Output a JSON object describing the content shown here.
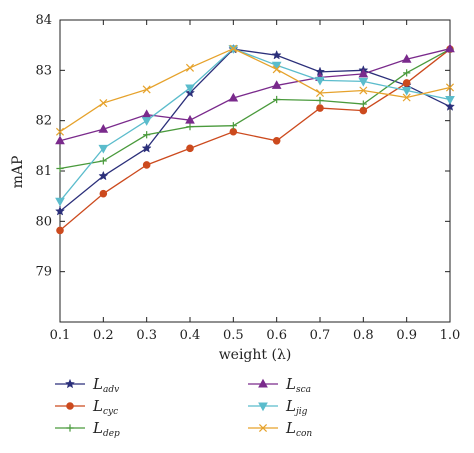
{
  "chart_data": {
    "type": "line",
    "xlabel": "weight (λ)",
    "ylabel": "mAP",
    "x": [
      0.1,
      0.2,
      0.3,
      0.4,
      0.5,
      0.6,
      0.7,
      0.8,
      0.9,
      1.0
    ],
    "x_tick_labels": [
      "0.1",
      "0.2",
      "0.3",
      "0.4",
      "0.5",
      "0.6",
      "0.7",
      "0.8",
      "0.9",
      "1.0"
    ],
    "xlim": [
      0.1,
      1.0
    ],
    "ylim": [
      78,
      84
    ],
    "y_tick_labels": [
      "79",
      "80",
      "81",
      "82",
      "83",
      "84"
    ],
    "y_ticks": [
      79,
      80,
      81,
      82,
      83,
      84
    ],
    "grid": false,
    "legend_placement": "bottom",
    "series": [
      {
        "name": "L",
        "sub": "adv",
        "color": "#2b2f7a",
        "marker": "star",
        "values": [
          80.2,
          80.9,
          81.45,
          82.55,
          83.42,
          83.3,
          82.97,
          83.0,
          82.7,
          82.28
        ]
      },
      {
        "name": "L",
        "sub": "cyc",
        "color": "#cc4a1e",
        "marker": "circle",
        "values": [
          79.82,
          80.55,
          81.12,
          81.45,
          81.78,
          81.6,
          82.25,
          82.2,
          82.75,
          83.42
        ]
      },
      {
        "name": "L",
        "sub": "dep",
        "color": "#4a9a3c",
        "marker": "plus",
        "values": [
          81.05,
          81.2,
          81.72,
          81.88,
          81.9,
          82.42,
          82.4,
          82.33,
          82.95,
          83.42
        ]
      },
      {
        "name": "L",
        "sub": "sca",
        "color": "#7a2a8c",
        "marker": "triangle-up",
        "values": [
          81.6,
          81.83,
          82.12,
          82.01,
          82.45,
          82.7,
          82.86,
          82.93,
          83.22,
          83.43
        ]
      },
      {
        "name": "L",
        "sub": "jig",
        "color": "#5bbccc",
        "marker": "triangle-down",
        "values": [
          80.4,
          81.45,
          82.0,
          82.65,
          83.43,
          83.1,
          82.8,
          82.78,
          82.6,
          82.42
        ]
      },
      {
        "name": "L",
        "sub": "con",
        "color": "#e6a22b",
        "marker": "x",
        "values": [
          81.78,
          82.35,
          82.62,
          83.05,
          83.43,
          83.02,
          82.55,
          82.6,
          82.46,
          82.66
        ]
      }
    ]
  }
}
